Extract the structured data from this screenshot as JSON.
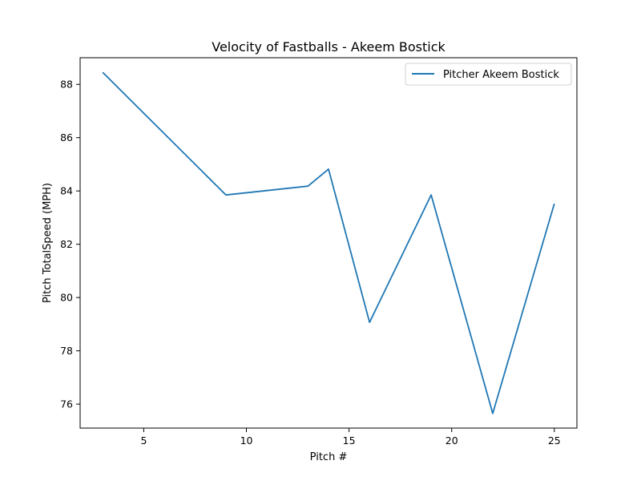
{
  "chart_data": {
    "type": "line",
    "title": "Velocity of Fastballs - Akeem Bostick",
    "xlabel": "Pitch #",
    "ylabel": "Pitch TotalSpeed (MPH)",
    "xlim": [
      1.9,
      26.1
    ],
    "ylim": [
      75.1,
      89.0
    ],
    "xticks": [
      5,
      10,
      15,
      20,
      25
    ],
    "yticks": [
      76,
      78,
      80,
      82,
      84,
      86,
      88
    ],
    "legend_position": "top-right",
    "grid": false,
    "series": [
      {
        "name": "Pitcher Akeem Bostick",
        "color": "#1f77b4",
        "x": [
          3,
          9,
          13,
          14,
          16,
          19,
          22,
          25
        ],
        "y": [
          88.45,
          83.85,
          84.18,
          84.82,
          79.07,
          83.85,
          75.65,
          83.52
        ]
      }
    ]
  }
}
